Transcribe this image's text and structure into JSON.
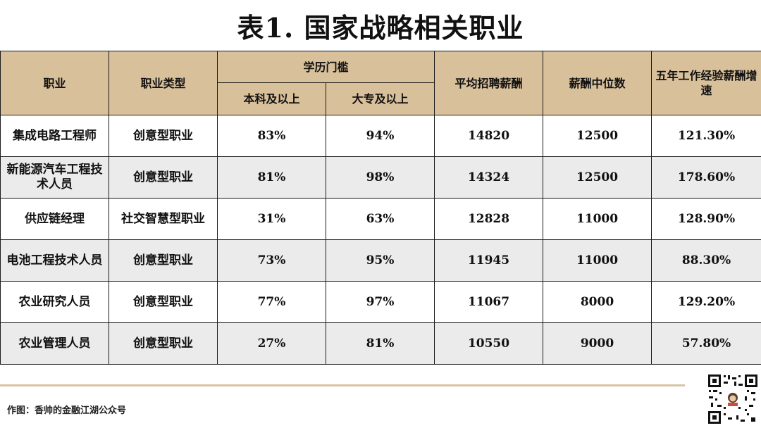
{
  "title": "表1. 国家战略相关职业",
  "table": {
    "headers": {
      "occupation": "职业",
      "type": "职业类型",
      "education": "学历门槛",
      "bachelor": "本科及以上",
      "college": "大专及以上",
      "avg_salary": "平均招聘薪酬",
      "median_salary": "薪酬中位数",
      "growth": "五年工作经验薪酬增速"
    },
    "rows": [
      {
        "occupation": "集成电路工程师",
        "type": "创意型职业",
        "bachelor": "83%",
        "college": "94%",
        "avg_salary": "14820",
        "median_salary": "12500",
        "growth": "121.30%"
      },
      {
        "occupation": "新能源汽车工程技术人员",
        "type": "创意型职业",
        "bachelor": "81%",
        "college": "98%",
        "avg_salary": "14324",
        "median_salary": "12500",
        "growth": "178.60%"
      },
      {
        "occupation": "供应链经理",
        "type": "社交智慧型职业",
        "bachelor": "31%",
        "college": "63%",
        "avg_salary": "12828",
        "median_salary": "11000",
        "growth": "128.90%"
      },
      {
        "occupation": "电池工程技术人员",
        "type": "创意型职业",
        "bachelor": "73%",
        "college": "95%",
        "avg_salary": "11945",
        "median_salary": "11000",
        "growth": "88.30%"
      },
      {
        "occupation": "农业研究人员",
        "type": "创意型职业",
        "bachelor": "77%",
        "college": "97%",
        "avg_salary": "11067",
        "median_salary": "8000",
        "growth": "129.20%"
      },
      {
        "occupation": "农业管理人员",
        "type": "创意型职业",
        "bachelor": "27%",
        "college": "81%",
        "avg_salary": "10550",
        "median_salary": "9000",
        "growth": "57.80%"
      }
    ]
  },
  "footer": {
    "credit": "作图：香帅的金融江湖公众号"
  },
  "colors": {
    "header_bg": "#d8c09b",
    "alt_row_bg": "#ebebeb",
    "divider": "#d9c3a3"
  },
  "icons": {
    "qr": "qr-code-icon"
  }
}
